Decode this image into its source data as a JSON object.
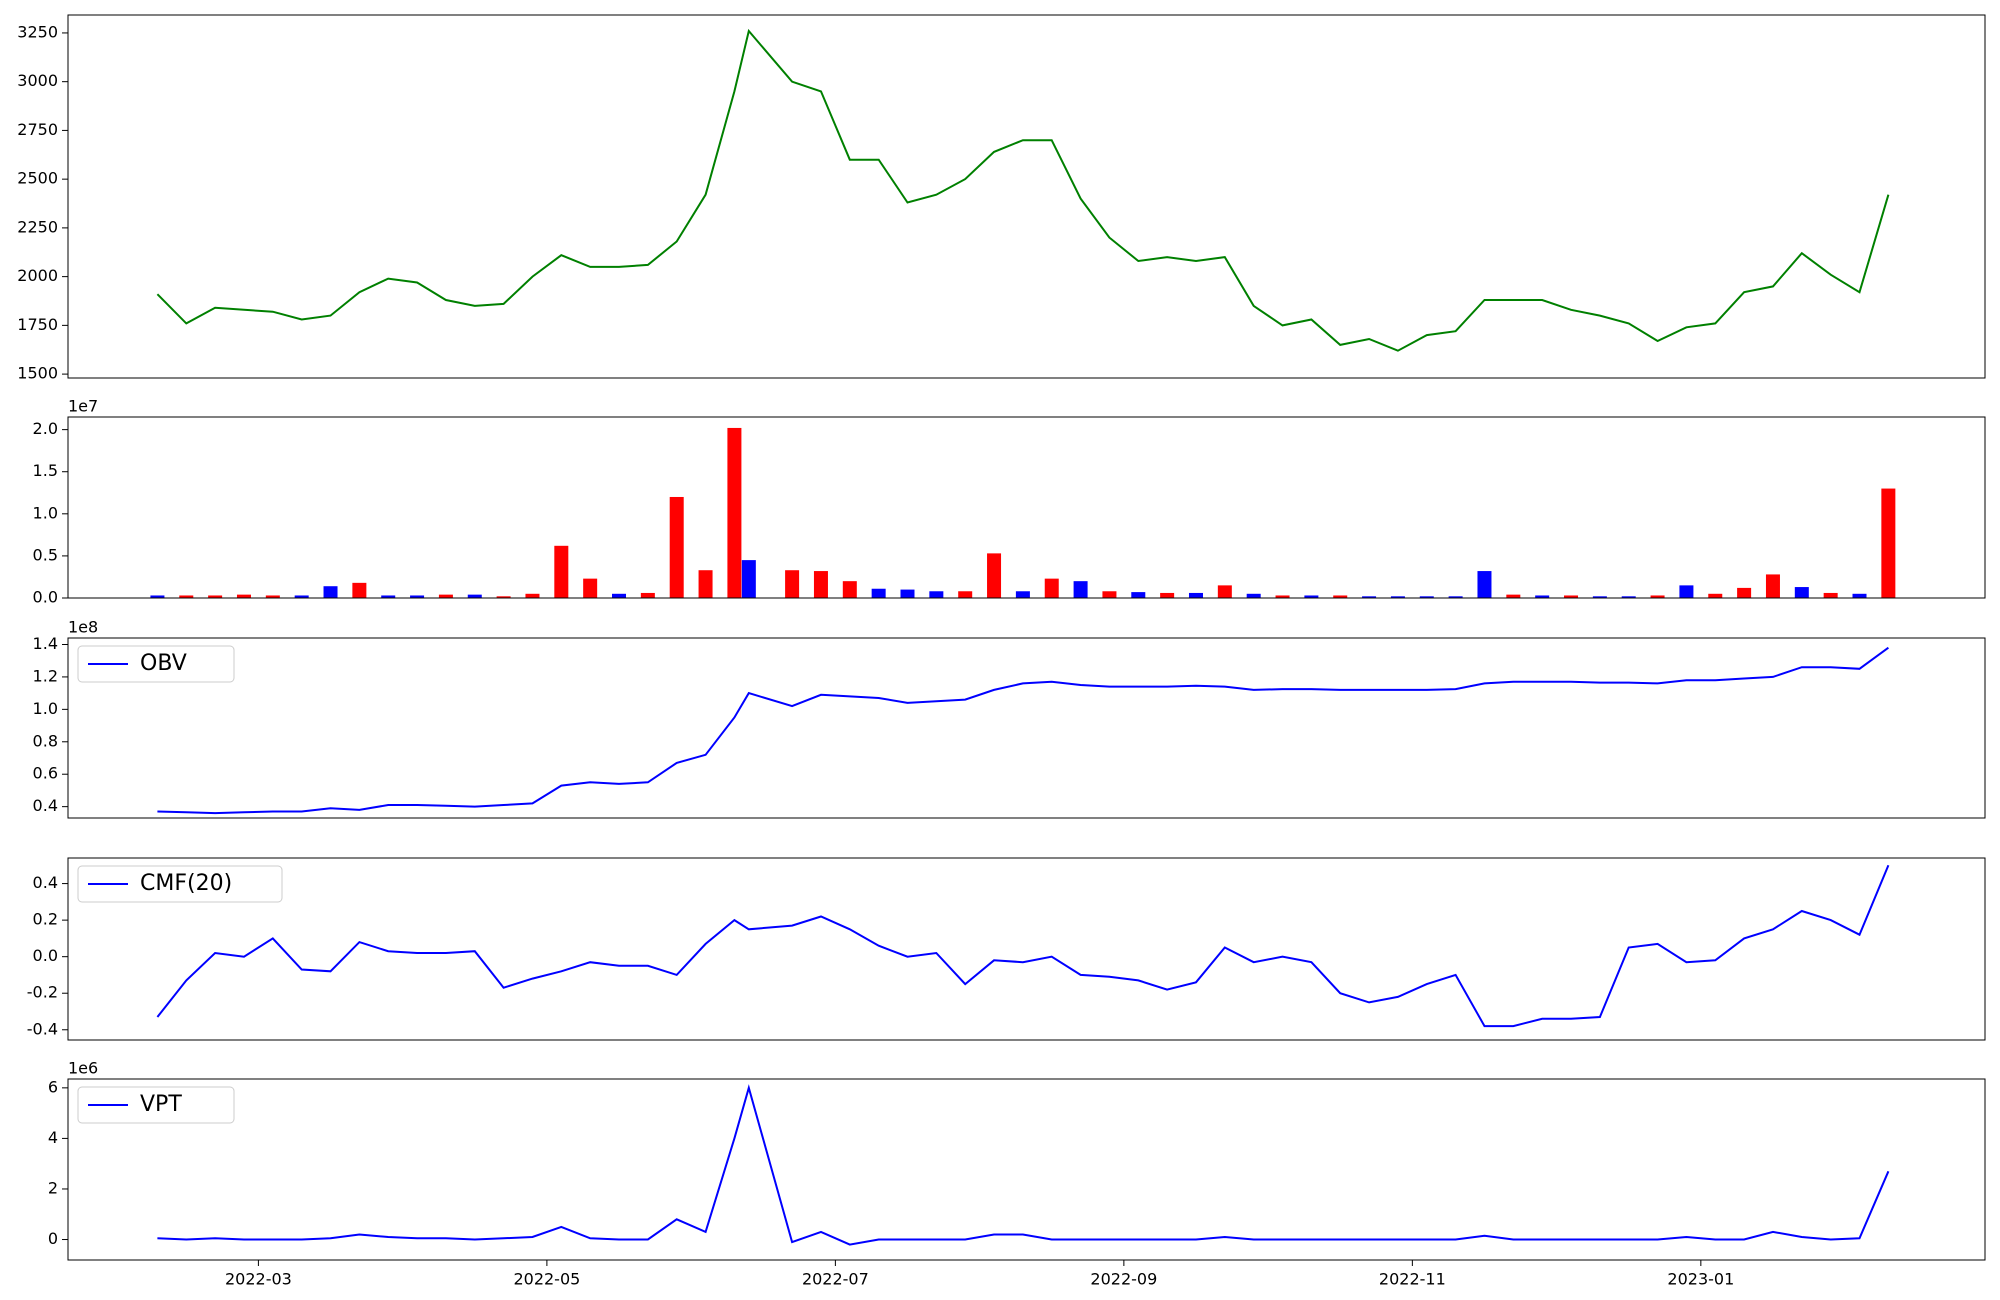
{
  "chart_data": [
    {
      "type": "line",
      "color": "#008000",
      "x": [
        2.3,
        2.5,
        2.7,
        2.9,
        3.1,
        3.3,
        3.5,
        3.7,
        3.9,
        4.1,
        4.3,
        4.5,
        4.7,
        4.9,
        5.1,
        5.3,
        5.5,
        5.7,
        5.9,
        6.1,
        6.3,
        6.4,
        6.7,
        6.9,
        7.1,
        7.3,
        7.5,
        7.7,
        7.9,
        8.1,
        8.3,
        8.5,
        8.7,
        8.9,
        9.1,
        9.3,
        9.5,
        9.7,
        9.9,
        10.1,
        10.3,
        10.5,
        10.7,
        10.9,
        11.1,
        11.3,
        11.5,
        11.7,
        11.9,
        12.1,
        12.3,
        12.5,
        12.7,
        12.9,
        13.1,
        13.3,
        13.5,
        13.7,
        13.9,
        14.1,
        14.3
      ],
      "values": [
        1910,
        1760,
        1840,
        1830,
        1820,
        1780,
        1800,
        1920,
        1990,
        1970,
        1880,
        1850,
        1860,
        2000,
        2110,
        2050,
        2050,
        2060,
        2180,
        2420,
        2950,
        3260,
        3000,
        2950,
        2600,
        2600,
        2380,
        2420,
        2500,
        2640,
        2700,
        2700,
        2400,
        2200,
        2080,
        2100,
        2080,
        2100,
        1850,
        1750,
        1780,
        1650,
        1680,
        1620,
        1700,
        1720,
        1880,
        1880,
        1880,
        1830,
        1800,
        1760,
        1670,
        1740,
        1760,
        1920,
        1950,
        2120,
        2010,
        1920,
        2420
      ],
      "xlim": [
        1.68,
        14.97
      ],
      "ylim": [
        1480,
        3342
      ],
      "yticks": [
        1500,
        1750,
        2000,
        2250,
        2500,
        2750,
        3000,
        3250
      ]
    },
    {
      "type": "bar",
      "offset_label": "1e7",
      "x": [
        2.3,
        2.5,
        2.7,
        2.9,
        3.1,
        3.3,
        3.5,
        3.7,
        3.9,
        4.1,
        4.3,
        4.5,
        4.7,
        4.9,
        5.1,
        5.3,
        5.5,
        5.7,
        5.9,
        6.1,
        6.3,
        6.4,
        6.7,
        6.9,
        7.1,
        7.3,
        7.5,
        7.7,
        7.9,
        8.1,
        8.3,
        8.5,
        8.7,
        8.9,
        9.1,
        9.3,
        9.5,
        9.7,
        9.9,
        10.1,
        10.3,
        10.5,
        10.7,
        10.9,
        11.1,
        11.3,
        11.5,
        11.7,
        11.9,
        12.1,
        12.3,
        12.5,
        12.7,
        12.9,
        13.1,
        13.3,
        13.5,
        13.7,
        13.9,
        14.1,
        14.3
      ],
      "values": [
        300000,
        300000,
        300000,
        400000,
        300000,
        300000,
        1400000,
        1800000,
        300000,
        300000,
        400000,
        400000,
        200000,
        500000,
        6200000,
        2300000,
        500000,
        600000,
        12000000,
        3300000,
        20200000,
        4500000,
        3300000,
        3200000,
        2000000,
        1100000,
        1000000,
        800000,
        800000,
        5300000,
        800000,
        2300000,
        2000000,
        800000,
        700000,
        600000,
        600000,
        1500000,
        500000,
        300000,
        300000,
        300000,
        200000,
        200000,
        200000,
        200000,
        3200000,
        400000,
        300000,
        300000,
        200000,
        200000,
        300000,
        1500000,
        500000,
        1200000,
        2800000,
        1300000,
        600000,
        500000,
        13000000
      ],
      "bar_colors": [
        "#0000ff",
        "#ff0000",
        "#ff0000",
        "#ff0000",
        "#ff0000",
        "#0000ff",
        "#0000ff",
        "#ff0000",
        "#0000ff",
        "#0000ff",
        "#ff0000",
        "#0000ff",
        "#ff0000",
        "#ff0000",
        "#ff0000",
        "#ff0000",
        "#0000ff",
        "#ff0000",
        "#ff0000",
        "#ff0000",
        "#ff0000",
        "#0000ff",
        "#ff0000",
        "#ff0000",
        "#ff0000",
        "#0000ff",
        "#0000ff",
        "#0000ff",
        "#ff0000",
        "#ff0000",
        "#0000ff",
        "#ff0000",
        "#0000ff",
        "#ff0000",
        "#0000ff",
        "#ff0000",
        "#0000ff",
        "#ff0000",
        "#0000ff",
        "#ff0000",
        "#0000ff",
        "#ff0000",
        "#0000ff",
        "#0000ff",
        "#0000ff",
        "#0000ff",
        "#0000ff",
        "#ff0000",
        "#0000ff",
        "#ff0000",
        "#0000ff",
        "#0000ff",
        "#ff0000",
        "#0000ff",
        "#ff0000",
        "#ff0000",
        "#ff0000",
        "#0000ff",
        "#ff0000",
        "#0000ff",
        "#ff0000"
      ],
      "xlim": [
        1.68,
        14.97
      ],
      "ylim": [
        0,
        21500000
      ],
      "yticks": [
        {
          "value": 0,
          "label": "0.0"
        },
        {
          "value": 5000000,
          "label": "0.5"
        },
        {
          "value": 10000000,
          "label": "1.0"
        },
        {
          "value": 15000000,
          "label": "1.5"
        },
        {
          "value": 20000000,
          "label": "2.0"
        }
      ]
    },
    {
      "type": "line",
      "offset_label": "1e8",
      "legend": "upper left",
      "x": [
        2.3,
        2.5,
        2.7,
        2.9,
        3.1,
        3.3,
        3.5,
        3.7,
        3.9,
        4.1,
        4.3,
        4.5,
        4.7,
        4.9,
        5.1,
        5.3,
        5.5,
        5.7,
        5.9,
        6.1,
        6.3,
        6.4,
        6.7,
        6.9,
        7.1,
        7.3,
        7.5,
        7.7,
        7.9,
        8.1,
        8.3,
        8.5,
        8.7,
        8.9,
        9.1,
        9.3,
        9.5,
        9.7,
        9.9,
        10.1,
        10.3,
        10.5,
        10.7,
        10.9,
        11.1,
        11.3,
        11.5,
        11.7,
        11.9,
        12.1,
        12.3,
        12.5,
        12.7,
        12.9,
        13.1,
        13.3,
        13.5,
        13.7,
        13.9,
        14.1,
        14.3
      ],
      "series": [
        {
          "name": "OBV",
          "color": "#0000ff",
          "values": [
            37000000,
            36500000,
            36000000,
            36500000,
            37000000,
            37000000,
            39000000,
            38000000,
            41000000,
            41000000,
            40500000,
            40000000,
            41000000,
            42000000,
            53000000,
            55000000,
            54000000,
            55000000,
            67000000,
            72000000,
            95000000,
            110000000,
            102000000,
            109000000,
            108000000,
            107000000,
            104000000,
            105000000,
            106000000,
            112000000,
            116000000,
            117000000,
            115000000,
            114000000,
            114000000,
            114000000,
            114500000,
            114000000,
            112000000,
            112500000,
            112500000,
            112000000,
            112000000,
            112000000,
            112000000,
            112500000,
            116000000,
            117000000,
            117000000,
            117000000,
            116500000,
            116500000,
            116000000,
            118000000,
            118000000,
            119000000,
            120000000,
            126000000,
            126000000,
            125000000,
            138000000
          ]
        }
      ],
      "xlim": [
        1.68,
        14.97
      ],
      "ylim": [
        33000000,
        144000000
      ],
      "yticks": [
        {
          "value": 40000000,
          "label": "0.4"
        },
        {
          "value": 60000000,
          "label": "0.6"
        },
        {
          "value": 80000000,
          "label": "0.8"
        },
        {
          "value": 100000000,
          "label": "1.0"
        },
        {
          "value": 120000000,
          "label": "1.2"
        },
        {
          "value": 140000000,
          "label": "1.4"
        }
      ]
    },
    {
      "type": "line",
      "legend": "upper left",
      "x": [
        2.3,
        2.5,
        2.7,
        2.9,
        3.1,
        3.3,
        3.5,
        3.7,
        3.9,
        4.1,
        4.3,
        4.5,
        4.7,
        4.9,
        5.1,
        5.3,
        5.5,
        5.7,
        5.9,
        6.1,
        6.3,
        6.4,
        6.7,
        6.9,
        7.1,
        7.3,
        7.5,
        7.7,
        7.9,
        8.1,
        8.3,
        8.5,
        8.7,
        8.9,
        9.1,
        9.3,
        9.5,
        9.7,
        9.9,
        10.1,
        10.3,
        10.5,
        10.7,
        10.9,
        11.1,
        11.3,
        11.5,
        11.7,
        11.9,
        12.1,
        12.3,
        12.5,
        12.7,
        12.9,
        13.1,
        13.3,
        13.5,
        13.7,
        13.9,
        14.1,
        14.3
      ],
      "series": [
        {
          "name": "CMF(20)",
          "color": "#0000ff",
          "values": [
            -0.33,
            -0.13,
            0.02,
            0.0,
            0.1,
            -0.07,
            -0.08,
            0.08,
            0.03,
            0.02,
            0.02,
            0.03,
            -0.17,
            -0.12,
            -0.08,
            -0.03,
            -0.05,
            -0.05,
            -0.1,
            0.07,
            0.2,
            0.15,
            0.17,
            0.22,
            0.15,
            0.06,
            0.0,
            0.02,
            -0.15,
            -0.02,
            -0.03,
            0.0,
            -0.1,
            -0.11,
            -0.13,
            -0.18,
            -0.14,
            0.05,
            -0.03,
            0.0,
            -0.03,
            -0.2,
            -0.25,
            -0.22,
            -0.15,
            -0.1,
            -0.38,
            -0.38,
            -0.34,
            -0.34,
            -0.33,
            0.05,
            0.07,
            -0.03,
            -0.02,
            0.1,
            0.15,
            0.25,
            0.2,
            0.12,
            0.5
          ]
        }
      ],
      "xlim": [
        1.68,
        14.97
      ],
      "ylim": [
        -0.456,
        0.54
      ],
      "yticks": [
        -0.4,
        -0.2,
        {
          "value": 0,
          "label": "0.0"
        },
        0.2,
        0.4
      ]
    },
    {
      "type": "line",
      "offset_label": "1e6",
      "legend": "upper left",
      "x": [
        2.3,
        2.5,
        2.7,
        2.9,
        3.1,
        3.3,
        3.5,
        3.7,
        3.9,
        4.1,
        4.3,
        4.5,
        4.7,
        4.9,
        5.1,
        5.3,
        5.5,
        5.7,
        5.9,
        6.1,
        6.3,
        6.4,
        6.7,
        6.9,
        7.1,
        7.3,
        7.5,
        7.7,
        7.9,
        8.1,
        8.3,
        8.5,
        8.7,
        8.9,
        9.1,
        9.3,
        9.5,
        9.7,
        9.9,
        10.1,
        10.3,
        10.5,
        10.7,
        10.9,
        11.1,
        11.3,
        11.5,
        11.7,
        11.9,
        12.1,
        12.3,
        12.5,
        12.7,
        12.9,
        13.1,
        13.3,
        13.5,
        13.7,
        13.9,
        14.1,
        14.3
      ],
      "series": [
        {
          "name": "VPT",
          "color": "#0000ff",
          "values": [
            50000,
            0,
            50000,
            0,
            0,
            0,
            50000,
            200000,
            100000,
            50000,
            50000,
            0,
            50000,
            100000,
            500000,
            50000,
            0,
            0,
            800000,
            300000,
            4000000,
            6000000,
            -100000,
            300000,
            -200000,
            0,
            0,
            0,
            0,
            200000,
            200000,
            0,
            0,
            0,
            0,
            0,
            0,
            100000,
            0,
            0,
            0,
            0,
            0,
            0,
            0,
            0,
            150000,
            0,
            0,
            0,
            0,
            0,
            0,
            100000,
            0,
            0,
            300000,
            100000,
            0,
            50000,
            2700000
          ]
        }
      ],
      "xlim": [
        1.68,
        14.97
      ],
      "ylim": [
        -810000,
        6350000
      ],
      "yticks": [
        0,
        {
          "value": 2000000,
          "label": "2"
        },
        {
          "value": 4000000,
          "label": "4"
        },
        {
          "value": 6000000,
          "label": "6"
        }
      ],
      "xticks": [
        {
          "value": 3,
          "label": "2022-03"
        },
        {
          "value": 5,
          "label": "2022-05"
        },
        {
          "value": 7,
          "label": "2022-07"
        },
        {
          "value": 9,
          "label": "2022-09"
        },
        {
          "value": 11,
          "label": "2022-11"
        },
        {
          "value": 13,
          "label": "2023-01"
        }
      ]
    }
  ]
}
